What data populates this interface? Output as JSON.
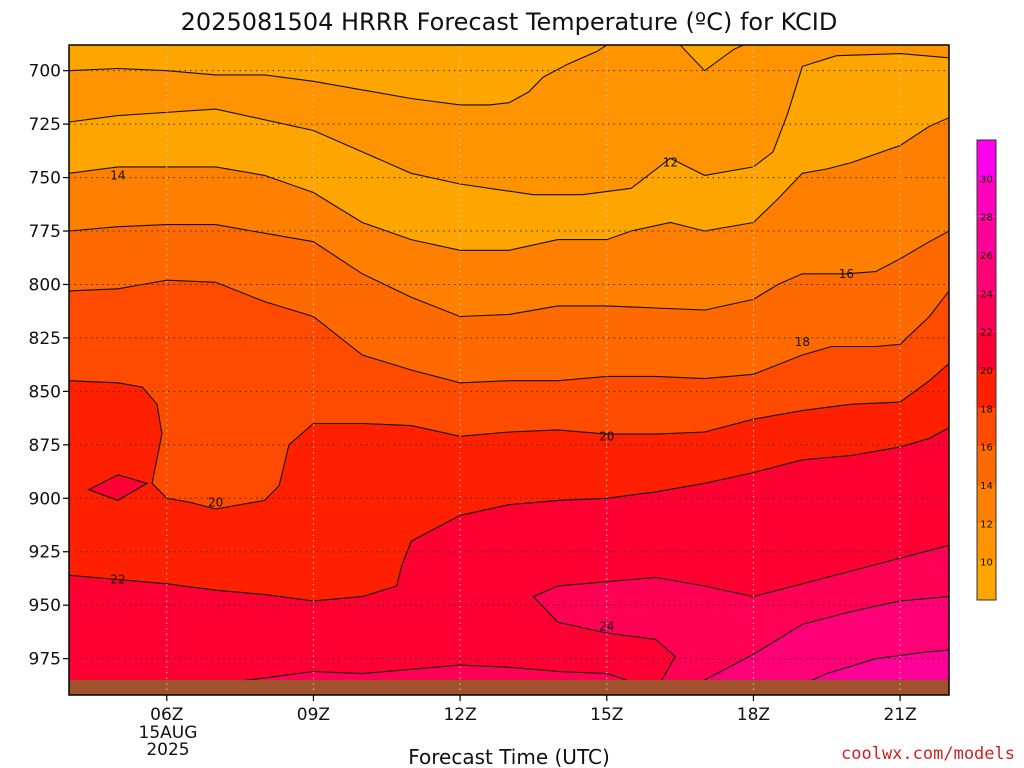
{
  "chart_data": {
    "type": "heatmap",
    "title": "2025081504 HRRR Forecast Temperature (ºC) for KCID",
    "xlabel": "Forecast Time (UTC)",
    "ylabel": "",
    "date_label": {
      "day": "15AUG",
      "year": "2025"
    },
    "credit": "coolwx.com/models",
    "x_ticks": [
      "06Z",
      "09Z",
      "12Z",
      "15Z",
      "18Z",
      "21Z"
    ],
    "x_tick_hours": [
      6,
      9,
      12,
      15,
      18,
      21
    ],
    "xlim_hours": [
      4,
      22
    ],
    "y_ticks": [
      700,
      725,
      750,
      775,
      800,
      825,
      850,
      875,
      900,
      925,
      950,
      975
    ],
    "ylim_hpa": [
      688,
      992
    ],
    "y_axis_inverted": true,
    "grid": true,
    "colorbar": {
      "ticks": [
        10,
        12,
        14,
        16,
        18,
        20,
        22,
        24,
        26,
        28,
        30
      ],
      "colors": [
        {
          "from": 8,
          "to": 10,
          "color": "#ffa500"
        },
        {
          "from": 10,
          "to": 12,
          "color": "#ff9400"
        },
        {
          "from": 12,
          "to": 14,
          "color": "#ff8000"
        },
        {
          "from": 14,
          "to": 16,
          "color": "#ff6a00"
        },
        {
          "from": 16,
          "to": 18,
          "color": "#ff4b00"
        },
        {
          "from": 18,
          "to": 20,
          "color": "#ff2000"
        },
        {
          "from": 20,
          "to": 22,
          "color": "#ff0033"
        },
        {
          "from": 22,
          "to": 24,
          "color": "#ff0055"
        },
        {
          "from": 24,
          "to": 26,
          "color": "#ff0077"
        },
        {
          "from": 26,
          "to": 28,
          "color": "#ff0099"
        },
        {
          "from": 28,
          "to": 30,
          "color": "#ff00bb"
        },
        {
          "from": 30,
          "to": 32,
          "color": "#ff00ee"
        }
      ]
    },
    "contour_labels": [
      {
        "text": "12",
        "hour": 16.3,
        "hpa": 743
      },
      {
        "text": "14",
        "hour": 5.0,
        "hpa": 749
      },
      {
        "text": "16",
        "hour": 19.9,
        "hpa": 795
      },
      {
        "text": "18",
        "hour": 19.0,
        "hpa": 827
      },
      {
        "text": "20",
        "hour": 7.0,
        "hpa": 902
      },
      {
        "text": "20",
        "hour": 15.0,
        "hpa": 871
      },
      {
        "text": "22",
        "hour": 5.0,
        "hpa": 938
      },
      {
        "text": "24",
        "hour": 15.0,
        "hpa": 960
      }
    ],
    "surface": {
      "hpa": 985,
      "color": "#a0522d"
    },
    "contours": [
      {
        "level": 12,
        "fill": "#ff9400",
        "points": [
          [
            4,
            700
          ],
          [
            5,
            699
          ],
          [
            6,
            700
          ],
          [
            7,
            702
          ],
          [
            8,
            702
          ],
          [
            9,
            705
          ],
          [
            10,
            709
          ],
          [
            11,
            713
          ],
          [
            12,
            716
          ],
          [
            12.6,
            716
          ],
          [
            13,
            715
          ],
          [
            13.4,
            710
          ],
          [
            13.7,
            703
          ],
          [
            14.2,
            697
          ],
          [
            14.8,
            691
          ],
          [
            15,
            688
          ]
        ],
        "tail": [
          [
            16.5,
            688
          ],
          [
            17,
            700
          ],
          [
            17.6,
            690
          ],
          [
            17.8,
            688
          ],
          [
            22,
            688
          ],
          [
            22,
            694
          ],
          [
            21,
            692
          ],
          [
            19.7,
            693
          ],
          [
            19,
            698
          ],
          [
            18.7,
            720
          ],
          [
            18.4,
            738
          ],
          [
            18,
            745
          ],
          [
            17,
            749
          ],
          [
            16.3,
            741
          ],
          [
            15.5,
            755
          ],
          [
            14.5,
            758
          ],
          [
            13.5,
            758
          ],
          [
            12,
            753
          ],
          [
            11,
            748
          ],
          [
            10,
            738
          ],
          [
            9,
            728
          ],
          [
            7,
            718
          ],
          [
            5,
            721
          ],
          [
            4,
            724
          ]
        ]
      },
      {
        "level": 14,
        "fill": "#ff8000",
        "points": [
          [
            4,
            748
          ],
          [
            5,
            745
          ],
          [
            6,
            745
          ],
          [
            7,
            745
          ],
          [
            8,
            749
          ],
          [
            9,
            757
          ],
          [
            10,
            771
          ],
          [
            11,
            779
          ],
          [
            12,
            784
          ],
          [
            13,
            784
          ],
          [
            14,
            779
          ],
          [
            15,
            779
          ],
          [
            15.5,
            775
          ],
          [
            16.3,
            771
          ],
          [
            17,
            775
          ],
          [
            18,
            771
          ],
          [
            18.5,
            760
          ],
          [
            19,
            748
          ],
          [
            19.5,
            746
          ],
          [
            20,
            743
          ],
          [
            21,
            735
          ],
          [
            21.6,
            726
          ],
          [
            22,
            722
          ]
        ]
      },
      {
        "level": 16,
        "fill": "#ff6a00",
        "points": [
          [
            4,
            775
          ],
          [
            5,
            773
          ],
          [
            6,
            772
          ],
          [
            7,
            772
          ],
          [
            8,
            776
          ],
          [
            9,
            780
          ],
          [
            10,
            795
          ],
          [
            11,
            806
          ],
          [
            12,
            815
          ],
          [
            13,
            814
          ],
          [
            14,
            810
          ],
          [
            15,
            810
          ],
          [
            16,
            811
          ],
          [
            17,
            812
          ],
          [
            18,
            807
          ],
          [
            18.5,
            800
          ],
          [
            19,
            795
          ],
          [
            19.9,
            795
          ],
          [
            20.5,
            794
          ],
          [
            21,
            788
          ],
          [
            21.6,
            780
          ],
          [
            22,
            775
          ]
        ]
      },
      {
        "level": 18,
        "fill": "#ff4b00",
        "points": [
          [
            4,
            803
          ],
          [
            5,
            802
          ],
          [
            5.5,
            800
          ],
          [
            6,
            798
          ],
          [
            7,
            799
          ],
          [
            8,
            808
          ],
          [
            9,
            815
          ],
          [
            10,
            833
          ],
          [
            11,
            840
          ],
          [
            12,
            846
          ],
          [
            13,
            845
          ],
          [
            14,
            845
          ],
          [
            15,
            843
          ],
          [
            16,
            843
          ],
          [
            17,
            844
          ],
          [
            18,
            842
          ],
          [
            19,
            833
          ],
          [
            19.6,
            829
          ],
          [
            20.5,
            829
          ],
          [
            21,
            828
          ],
          [
            21.6,
            815
          ],
          [
            22,
            803
          ]
        ]
      },
      {
        "level": 20,
        "fill": "#ff2000",
        "points": [
          [
            4,
            845
          ],
          [
            5,
            846
          ],
          [
            5.5,
            848
          ],
          [
            5.8,
            856
          ],
          [
            5.9,
            870
          ],
          [
            5.7,
            893
          ],
          [
            6,
            900
          ],
          [
            6.5,
            902
          ],
          [
            7,
            905
          ],
          [
            8,
            901
          ],
          [
            8.3,
            894
          ],
          [
            8.5,
            875
          ],
          [
            9,
            865
          ],
          [
            10,
            865
          ],
          [
            11,
            866
          ],
          [
            12,
            871
          ],
          [
            13,
            869
          ],
          [
            14,
            868
          ],
          [
            15,
            870
          ],
          [
            16,
            870
          ],
          [
            17,
            869
          ],
          [
            18,
            863
          ],
          [
            19,
            859
          ],
          [
            20,
            856
          ],
          [
            21,
            855
          ],
          [
            21.6,
            845
          ],
          [
            22,
            837
          ]
        ]
      },
      {
        "level": 22,
        "fill": "#ff0033",
        "points": [
          [
            4,
            936
          ],
          [
            5,
            938
          ],
          [
            6,
            940
          ],
          [
            7,
            943
          ],
          [
            8,
            945
          ],
          [
            9,
            948
          ],
          [
            10,
            946
          ],
          [
            10.7,
            941
          ],
          [
            10.8,
            932
          ],
          [
            11,
            920
          ],
          [
            12,
            908
          ],
          [
            13,
            903
          ],
          [
            14,
            901
          ],
          [
            15,
            900
          ],
          [
            16,
            897
          ],
          [
            17,
            893
          ],
          [
            18,
            888
          ],
          [
            19,
            882
          ],
          [
            20,
            880
          ],
          [
            21,
            876
          ],
          [
            21.6,
            872
          ],
          [
            22,
            867
          ]
        ]
      },
      {
        "level": 24,
        "fill": "#ff0055",
        "points": [
          [
            4,
            992
          ],
          [
            6,
            990
          ],
          [
            7,
            987
          ],
          [
            8,
            984
          ],
          [
            9,
            981
          ],
          [
            10,
            982
          ],
          [
            11,
            980
          ],
          [
            12,
            978
          ],
          [
            13,
            979
          ],
          [
            14,
            981
          ],
          [
            15,
            982
          ],
          [
            15.4,
            985
          ],
          [
            15.8,
            990
          ],
          [
            16,
            992
          ]
        ],
        "tail": [
          [
            22,
            992
          ],
          [
            22,
            922
          ],
          [
            21,
            928
          ],
          [
            20,
            934
          ],
          [
            19,
            940
          ],
          [
            18,
            946
          ],
          [
            17,
            941
          ],
          [
            16,
            937
          ],
          [
            15,
            939
          ],
          [
            14,
            941
          ],
          [
            13.5,
            946
          ],
          [
            14,
            958
          ],
          [
            15,
            963
          ],
          [
            16,
            966
          ],
          [
            16.4,
            974
          ],
          [
            16,
            990
          ],
          [
            16,
            992
          ]
        ]
      },
      {
        "level": 26,
        "fill": "#ff0077",
        "points": [
          [
            16.5,
            992
          ],
          [
            17,
            985
          ],
          [
            18,
            973
          ],
          [
            19,
            959
          ],
          [
            20,
            953
          ],
          [
            21,
            948
          ],
          [
            22,
            946
          ],
          [
            22,
            992
          ]
        ]
      },
      {
        "level": 28,
        "fill": "#ff0099",
        "points": [
          [
            18.5,
            992
          ],
          [
            19.5,
            982
          ],
          [
            20.5,
            975
          ],
          [
            21.5,
            972
          ],
          [
            22,
            971
          ],
          [
            22,
            992
          ]
        ]
      }
    ]
  }
}
